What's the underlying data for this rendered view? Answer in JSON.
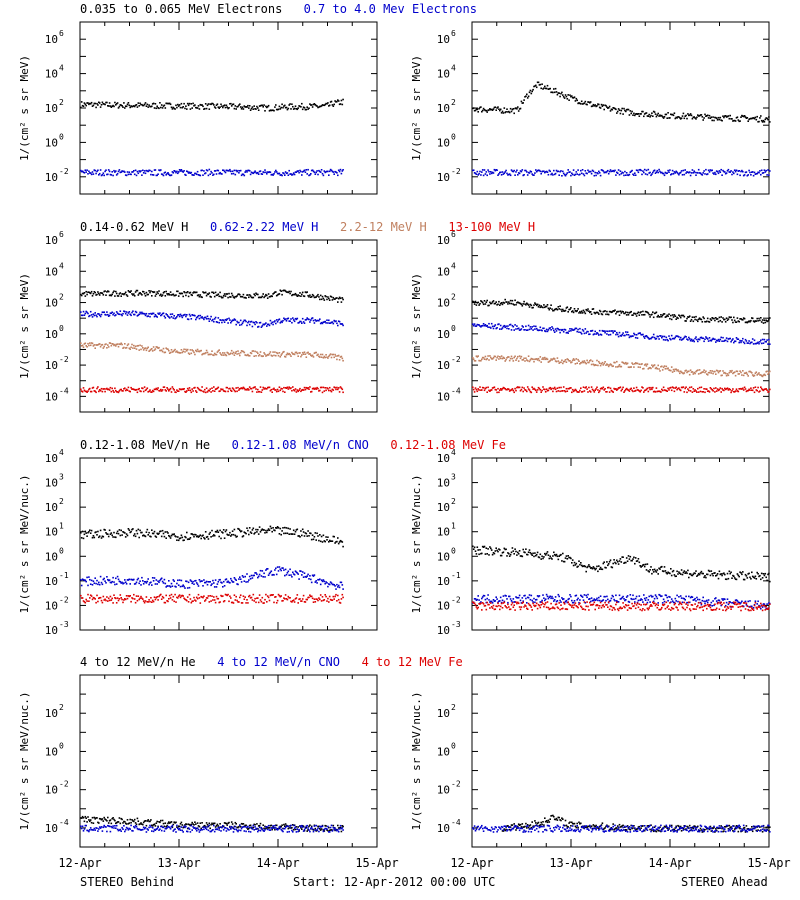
{
  "chart_data": [
    {
      "type": "scatter",
      "ylabel": "1/(cm² s sr MeV)",
      "yscale": "log",
      "ylim": [
        0.001,
        10000000
      ],
      "yticks": [
        {
          "label": "10",
          "exp": "-2",
          "value": 0.01
        },
        {
          "label": "10",
          "exp": "0",
          "value": 1
        },
        {
          "label": "10",
          "exp": "2",
          "value": 100
        },
        {
          "label": "10",
          "exp": "4",
          "value": 10000
        },
        {
          "label": "10",
          "exp": "6",
          "value": 1000000
        }
      ],
      "legend": [
        "0.035 to 0.065 MeV Electrons",
        "0.7 to 4.0 Mev Electrons"
      ],
      "legend_colors": [
        "#000000",
        "#0000cc"
      ],
      "behind": {
        "series": [
          {
            "name": "0.035 to 0.065 MeV Electrons",
            "color": "#000000",
            "points": [
              [
                0,
                180
              ],
              [
                0.4,
                160
              ],
              [
                0.8,
                150
              ],
              [
                1.2,
                140
              ],
              [
                1.6,
                130
              ],
              [
                1.9,
                110
              ],
              [
                2.1,
                130
              ],
              [
                2.4,
                135
              ],
              [
                2.5,
                150
              ],
              [
                2.55,
                200
              ],
              [
                2.65,
                250
              ]
            ]
          },
          {
            "name": "0.7 to 4.0 Mev Electrons",
            "color": "#0000cc",
            "points": [
              [
                0,
                0.02
              ],
              [
                0.66,
                0.019
              ],
              [
                1.33,
                0.02
              ],
              [
                2.0,
                0.019
              ],
              [
                2.65,
                0.02
              ]
            ]
          }
        ]
      },
      "ahead": {
        "series": [
          {
            "name": "0.035 to 0.065 MeV Electrons",
            "color": "#000000",
            "points": [
              [
                0,
                100
              ],
              [
                0.25,
                85
              ],
              [
                0.45,
                80
              ],
              [
                0.55,
                600
              ],
              [
                0.65,
                2500
              ],
              [
                0.8,
                1200
              ],
              [
                1.0,
                400
              ],
              [
                1.3,
                120
              ],
              [
                1.6,
                60
              ],
              [
                2.0,
                40
              ],
              [
                2.5,
                30
              ],
              [
                3.0,
                25
              ]
            ]
          },
          {
            "name": "0.7 to 4.0 Mev Electrons",
            "color": "#0000cc",
            "points": [
              [
                0,
                0.02
              ],
              [
                1.0,
                0.019
              ],
              [
                2.0,
                0.02
              ],
              [
                3.0,
                0.019
              ]
            ]
          }
        ]
      }
    },
    {
      "type": "scatter",
      "ylabel": "1/(cm² s sr MeV)",
      "yscale": "log",
      "ylim": [
        1e-05,
        1000000
      ],
      "yticks": [
        {
          "label": "10",
          "exp": "-4",
          "value": 0.0001
        },
        {
          "label": "10",
          "exp": "-2",
          "value": 0.01
        },
        {
          "label": "10",
          "exp": "0",
          "value": 1
        },
        {
          "label": "10",
          "exp": "2",
          "value": 100
        },
        {
          "label": "10",
          "exp": "4",
          "value": 10000
        },
        {
          "label": "10",
          "exp": "6",
          "value": 1000000
        }
      ],
      "legend": [
        "0.14-0.62 MeV H",
        "0.62-2.22 MeV H",
        "2.2-12 MeV H",
        "13-100 MeV H"
      ],
      "legend_colors": [
        "#000000",
        "#0000cc",
        "#c08060",
        "#dd0000"
      ],
      "behind": {
        "series": [
          {
            "name": "0.14-0.62 MeV H",
            "color": "#000000",
            "points": [
              [
                0,
                400
              ],
              [
                0.7,
                450
              ],
              [
                1.3,
                350
              ],
              [
                1.9,
                300
              ],
              [
                2.0,
                500
              ],
              [
                2.3,
                350
              ],
              [
                2.65,
                150
              ]
            ]
          },
          {
            "name": "0.62-2.22 MeV H",
            "color": "#0000cc",
            "points": [
              [
                0,
                20
              ],
              [
                0.5,
                22
              ],
              [
                1.2,
                12
              ],
              [
                1.85,
                4
              ],
              [
                2.0,
                8
              ],
              [
                2.4,
                8
              ],
              [
                2.65,
                5
              ]
            ]
          },
          {
            "name": "2.2-12 MeV H",
            "color": "#c08060",
            "points": [
              [
                0,
                0.2
              ],
              [
                0.4,
                0.2
              ],
              [
                1.0,
                0.08
              ],
              [
                1.8,
                0.06
              ],
              [
                2.4,
                0.05
              ],
              [
                2.65,
                0.03
              ]
            ]
          },
          {
            "name": "13-100 MeV H",
            "color": "#dd0000",
            "points": [
              [
                0,
                0.0003
              ],
              [
                1.3,
                0.0003
              ],
              [
                2.65,
                0.0003
              ]
            ]
          }
        ]
      },
      "ahead": {
        "series": [
          {
            "name": "0.14-0.62 MeV H",
            "color": "#000000",
            "points": [
              [
                0,
                100
              ],
              [
                0.4,
                120
              ],
              [
                0.8,
                50
              ],
              [
                1.2,
                30
              ],
              [
                1.8,
                20
              ],
              [
                2.2,
                10
              ],
              [
                3.0,
                8
              ]
            ]
          },
          {
            "name": "0.62-2.22 MeV H",
            "color": "#0000cc",
            "points": [
              [
                0,
                4
              ],
              [
                0.6,
                2.5
              ],
              [
                1.2,
                1.5
              ],
              [
                2.0,
                0.6
              ],
              [
                3.0,
                0.35
              ]
            ]
          },
          {
            "name": "2.2-12 MeV H",
            "color": "#c08060",
            "points": [
              [
                0,
                0.03
              ],
              [
                0.5,
                0.03
              ],
              [
                1.0,
                0.02
              ],
              [
                1.7,
                0.01
              ],
              [
                2.2,
                0.004
              ],
              [
                3.0,
                0.003
              ]
            ]
          },
          {
            "name": "13-100 MeV H",
            "color": "#dd0000",
            "points": [
              [
                0,
                0.0003
              ],
              [
                1.5,
                0.0003
              ],
              [
                3.0,
                0.0003
              ]
            ]
          }
        ]
      }
    },
    {
      "type": "scatter",
      "ylabel": "1/(cm² s sr MeV/nuc.)",
      "yscale": "log",
      "ylim": [
        0.001,
        10000
      ],
      "yticks": [
        {
          "label": "10",
          "exp": "-3",
          "value": 0.001
        },
        {
          "label": "10",
          "exp": "-2",
          "value": 0.01
        },
        {
          "label": "10",
          "exp": "-1",
          "value": 0.1
        },
        {
          "label": "10",
          "exp": "0",
          "value": 1
        },
        {
          "label": "10",
          "exp": "1",
          "value": 10
        },
        {
          "label": "10",
          "exp": "2",
          "value": 100
        },
        {
          "label": "10",
          "exp": "3",
          "value": 1000
        },
        {
          "label": "10",
          "exp": "4",
          "value": 10000
        }
      ],
      "legend": [
        "0.12-1.08 MeV/n He",
        "0.12-1.08 MeV/n CNO",
        "0.12-1.08 MeV Fe"
      ],
      "legend_colors": [
        "#000000",
        "#0000cc",
        "#dd0000"
      ],
      "behind": {
        "series": [
          {
            "name": "0.12-1.08 MeV/n He",
            "color": "#000000",
            "points": [
              [
                0,
                8
              ],
              [
                0.5,
                10
              ],
              [
                1.0,
                7
              ],
              [
                1.5,
                9
              ],
              [
                1.9,
                12
              ],
              [
                2.2,
                10
              ],
              [
                2.65,
                4
              ]
            ]
          },
          {
            "name": "0.12-1.08 MeV/n CNO",
            "color": "#0000cc",
            "points": [
              [
                0,
                0.1
              ],
              [
                0.5,
                0.12
              ],
              [
                1.0,
                0.08
              ],
              [
                1.5,
                0.09
              ],
              [
                2.0,
                0.3
              ],
              [
                2.3,
                0.15
              ],
              [
                2.65,
                0.06
              ]
            ]
          },
          {
            "name": "0.12-1.08 MeV Fe",
            "color": "#dd0000",
            "points": [
              [
                0,
                0.02
              ],
              [
                1.3,
                0.02
              ],
              [
                2.65,
                0.02
              ]
            ]
          }
        ]
      },
      "ahead": {
        "series": [
          {
            "name": "0.12-1.08 MeV/n He",
            "color": "#000000",
            "points": [
              [
                0,
                2
              ],
              [
                0.5,
                1.5
              ],
              [
                0.9,
                1.0
              ],
              [
                1.2,
                0.3
              ],
              [
                1.6,
                1.0
              ],
              [
                1.8,
                0.3
              ],
              [
                2.3,
                0.2
              ],
              [
                3.0,
                0.15
              ]
            ]
          },
          {
            "name": "0.12-1.08 MeV/n CNO",
            "color": "#0000cc",
            "points": [
              [
                0,
                0.02
              ],
              [
                1.0,
                0.02
              ],
              [
                2.0,
                0.02
              ],
              [
                3.0,
                0.01
              ]
            ]
          },
          {
            "name": "0.12-1.08 MeV Fe",
            "color": "#dd0000",
            "points": [
              [
                0,
                0.01
              ],
              [
                1.5,
                0.01
              ],
              [
                3.0,
                0.01
              ]
            ]
          }
        ]
      }
    },
    {
      "type": "scatter",
      "ylabel": "1/(cm² s sr MeV/nuc.)",
      "yscale": "log",
      "ylim": [
        1e-05,
        10000
      ],
      "yticks": [
        {
          "label": "10",
          "exp": "-4",
          "value": 0.0001
        },
        {
          "label": "10",
          "exp": "-2",
          "value": 0.01
        },
        {
          "label": "10",
          "exp": "0",
          "value": 1
        },
        {
          "label": "10",
          "exp": "2",
          "value": 100
        }
      ],
      "legend": [
        "4 to 12 MeV/n He",
        "4 to 12 MeV/n CNO",
        "4 to 12 MeV Fe"
      ],
      "legend_colors": [
        "#000000",
        "#0000cc",
        "#dd0000"
      ],
      "behind": {
        "series": [
          {
            "name": "4 to 12 MeV/n He",
            "color": "#000000",
            "points": [
              [
                0,
                0.0003
              ],
              [
                0.5,
                0.00025
              ],
              [
                1.0,
                0.00015
              ],
              [
                1.5,
                0.00015
              ],
              [
                2.0,
                0.00012
              ],
              [
                2.65,
                0.0001
              ]
            ]
          },
          {
            "name": "4 to 12 MeV/n CNO",
            "color": "#0000cc",
            "points": [
              [
                0,
                0.0001
              ],
              [
                1.3,
                0.0001
              ],
              [
                2.65,
                0.0001
              ]
            ]
          }
        ]
      },
      "ahead": {
        "series": [
          {
            "name": "4 to 12 MeV/n He",
            "color": "#000000",
            "points": [
              [
                0.3,
                0.0001
              ],
              [
                0.7,
                0.0002
              ],
              [
                0.8,
                0.0004
              ],
              [
                1.0,
                0.00015
              ],
              [
                1.5,
                0.00012
              ],
              [
                2.0,
                0.0001
              ],
              [
                3.0,
                0.0001
              ]
            ]
          },
          {
            "name": "4 to 12 MeV/n CNO",
            "color": "#0000cc",
            "points": [
              [
                0,
                0.0001
              ],
              [
                1.5,
                0.0001
              ],
              [
                3.0,
                0.0001
              ]
            ]
          }
        ]
      }
    }
  ],
  "x_axis": {
    "ticks": [
      "12-Apr",
      "13-Apr",
      "14-Apr",
      "15-Apr"
    ],
    "range": [
      "12-Apr-2012 00:00",
      "15-Apr-2012 00:00"
    ]
  },
  "footer": {
    "left": "STEREO Behind",
    "center": "Start: 12-Apr-2012 00:00 UTC",
    "right": "STEREO Ahead"
  }
}
